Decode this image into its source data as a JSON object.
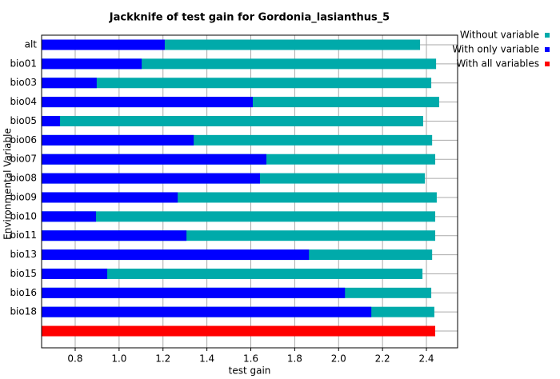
{
  "chart_data": {
    "type": "bar",
    "orientation": "horizontal",
    "title": "Jackknife of test gain for Gordonia_lasianthus_5",
    "x_label": "test gain",
    "y_label": "Environmental Variable",
    "categories": [
      "alt",
      "bio01",
      "bio03",
      "bio04",
      "bio05",
      "bio06",
      "bio07",
      "bio08",
      "bio09",
      "bio10",
      "bio11",
      "bio13",
      "bio15",
      "bio16",
      "bio18",
      null
    ],
    "series": [
      {
        "name": "Without variable",
        "color": "#00aaaa",
        "values": [
          2.371,
          2.444,
          2.422,
          2.458,
          2.385,
          2.426,
          2.44,
          2.393,
          2.447,
          2.44,
          2.44,
          2.426,
          2.382,
          2.422,
          2.436,
          null
        ]
      },
      {
        "name": "With only variable",
        "color": "#0000ff",
        "values": [
          1.208,
          1.103,
          0.898,
          1.609,
          0.731,
          1.34,
          1.671,
          1.642,
          1.267,
          0.895,
          1.307,
          1.865,
          0.946,
          2.029,
          2.149,
          null
        ]
      },
      {
        "name": "With all variables",
        "color": "#ff0000",
        "values": [
          null,
          null,
          null,
          null,
          null,
          null,
          null,
          null,
          null,
          null,
          null,
          null,
          null,
          null,
          null,
          2.44
        ]
      }
    ],
    "xlim": [
      0.647,
      2.542
    ],
    "xticks": [
      0.8,
      {
        "value": 1.0,
        "label": "1.0"
      },
      1.2,
      1.4,
      1.6,
      1.8,
      {
        "value": 2.0,
        "label": "2.0"
      },
      2.2,
      2.4
    ],
    "grid": true,
    "legend": "top-right"
  }
}
